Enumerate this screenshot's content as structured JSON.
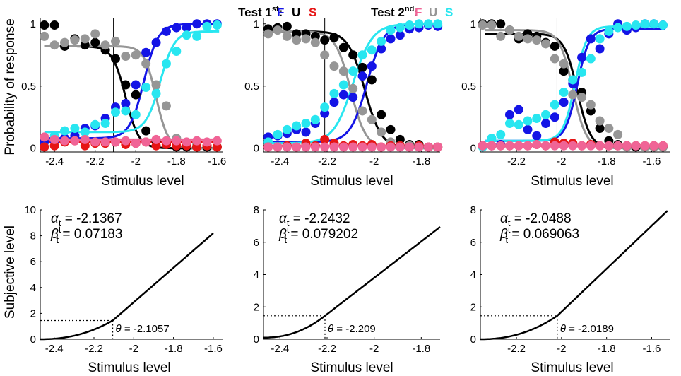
{
  "legend": {
    "test1_label": "Test 1",
    "test1_sup": "st",
    "test2_label": "Test 2",
    "test2_sup": "nd",
    "test1_items": [
      {
        "letter": "F",
        "color": "#1414e6"
      },
      {
        "letter": "U",
        "color": "#000000"
      },
      {
        "letter": "S",
        "color": "#e61414"
      }
    ],
    "test2_items": [
      {
        "letter": "F",
        "color": "#f06496"
      },
      {
        "letter": "U",
        "color": "#969696"
      },
      {
        "letter": "S",
        "color": "#28e6f0"
      }
    ]
  },
  "colors": {
    "blue": "#1414e6",
    "black": "#000000",
    "red": "#e61414",
    "pink": "#f06496",
    "gray": "#969696",
    "cyan": "#28e6f0"
  },
  "chart_data": [
    {
      "type": "scatter",
      "title": "",
      "xlabel": "Stimulus level",
      "ylabel": "Probability of response",
      "xlim": [
        -2.47,
        -1.57
      ],
      "ylim": [
        -0.03,
        1.05
      ],
      "xticks": [
        -2.4,
        -2.2,
        -2.0,
        -1.8,
        -1.6
      ],
      "xtick_labels": [
        "-2.4",
        "-2.2",
        "-2",
        "-1.8",
        "-1.6"
      ],
      "yticks": [
        0,
        0.5,
        1
      ],
      "ytick_labels": [
        "0",
        "0.5",
        "1"
      ],
      "vline_x": -2.11,
      "x": [
        -2.45,
        -2.4,
        -2.35,
        -2.3,
        -2.25,
        -2.2,
        -2.15,
        -2.1,
        -2.05,
        -2.0,
        -1.95,
        -1.9,
        -1.85,
        -1.8,
        -1.75,
        -1.7,
        -1.65,
        -1.6
      ],
      "curves": [
        {
          "color": "black",
          "mu": -2.05,
          "sigma": 0.055,
          "lapse_top": 0.82,
          "base": 0.0,
          "decreasing": true
        },
        {
          "color": "gray",
          "mu": -1.9,
          "sigma": 0.05,
          "lapse_top": 0.82,
          "base": 0.0,
          "decreasing": true
        },
        {
          "color": "blue",
          "mu": -1.96,
          "sigma": 0.06,
          "lapse_top": 1.0,
          "base": 0.08,
          "decreasing": false
        },
        {
          "color": "cyan",
          "mu": -1.88,
          "sigma": 0.06,
          "lapse_top": 0.94,
          "base": 0.13,
          "decreasing": false
        },
        {
          "color": "red",
          "flat": 0.05
        },
        {
          "color": "pink",
          "flat": 0.07
        }
      ],
      "series": [
        {
          "name": "Test 1st U",
          "color": "black",
          "values": [
            0.99,
            0.99,
            0.82,
            0.88,
            0.83,
            0.85,
            0.79,
            0.72,
            0.51,
            0.43,
            0.14,
            0.06,
            0.03,
            0.01,
            0.01,
            0.01,
            0.01,
            0.01
          ]
        },
        {
          "name": "Test 2nd U",
          "color": "gray",
          "values": [
            0.9,
            0.83,
            0.85,
            0.87,
            0.88,
            0.92,
            0.83,
            0.86,
            0.74,
            0.75,
            0.68,
            0.51,
            0.34,
            0.08,
            0.04,
            0.03,
            0.02,
            0.01
          ]
        },
        {
          "name": "Test 1st F",
          "color": "blue",
          "values": [
            0.05,
            0.06,
            0.08,
            0.1,
            0.16,
            0.18,
            0.24,
            0.33,
            0.36,
            0.51,
            0.77,
            0.85,
            0.94,
            0.97,
            0.97,
            1.0,
            1.0,
            1.0
          ]
        },
        {
          "name": "Test 2nd S",
          "color": "cyan",
          "values": [
            0.01,
            0.1,
            0.14,
            0.16,
            0.13,
            0.19,
            0.2,
            0.29,
            0.3,
            0.27,
            0.49,
            0.44,
            0.68,
            0.78,
            0.91,
            0.9,
            0.98,
            0.99
          ]
        },
        {
          "name": "Test 1st S",
          "color": "red",
          "values": [
            0.01,
            0.02,
            0.05,
            0.06,
            0.02,
            0.04,
            0.04,
            0.05,
            0.03,
            0.04,
            0.05,
            0.02,
            0.03,
            0.02,
            0.02,
            0.01,
            0.02,
            0.01
          ]
        },
        {
          "name": "Test 2nd F",
          "color": "pink",
          "values": [
            0.09,
            0.07,
            0.06,
            0.06,
            0.07,
            0.05,
            0.05,
            0.05,
            0.06,
            0.04,
            0.05,
            0.07,
            0.06,
            0.06,
            0.05,
            0.06,
            0.05,
            0.06
          ]
        }
      ]
    },
    {
      "type": "scatter",
      "title": "",
      "xlabel": "Stimulus level",
      "ylabel": "",
      "xlim": [
        -2.47,
        -1.72
      ],
      "ylim": [
        -0.03,
        1.05
      ],
      "xticks": [
        -2.4,
        -2.2,
        -2.0,
        -1.8
      ],
      "xtick_labels": [
        "-2.4",
        "-2.2",
        "-2",
        "-1.8"
      ],
      "yticks": [
        0,
        0.5,
        1
      ],
      "ytick_labels": [
        "0",
        "0.5",
        "1"
      ],
      "vline_x": -2.21,
      "x": [
        -2.45,
        -2.41,
        -2.37,
        -2.33,
        -2.29,
        -2.25,
        -2.21,
        -2.17,
        -2.13,
        -2.09,
        -2.05,
        -2.01,
        -1.97,
        -1.93,
        -1.89,
        -1.85,
        -1.81,
        -1.77,
        -1.73
      ],
      "curves": [
        {
          "color": "black",
          "mu": -2.04,
          "sigma": 0.06,
          "lapse_top": 0.94,
          "base": 0.0,
          "decreasing": true
        },
        {
          "color": "gray",
          "mu": -2.1,
          "sigma": 0.055,
          "lapse_top": 0.94,
          "base": 0.0,
          "decreasing": true
        },
        {
          "color": "blue",
          "mu": -2.03,
          "sigma": 0.06,
          "lapse_top": 1.0,
          "base": 0.05,
          "decreasing": false
        },
        {
          "color": "cyan",
          "mu": -2.09,
          "sigma": 0.07,
          "lapse_top": 1.0,
          "base": 0.04,
          "decreasing": false
        },
        {
          "color": "red",
          "flat": 0.02
        },
        {
          "color": "pink",
          "flat": 0.02
        }
      ],
      "series": [
        {
          "name": "Test 1st U",
          "color": "black",
          "values": [
            0.96,
            0.97,
            0.98,
            0.92,
            0.92,
            0.9,
            0.87,
            0.89,
            0.81,
            0.75,
            0.65,
            0.55,
            0.27,
            0.15,
            0.07,
            0.03,
            0.03,
            0.01,
            0.01
          ]
        },
        {
          "name": "Test 2nd U",
          "color": "gray",
          "values": [
            0.92,
            0.95,
            0.9,
            0.87,
            0.88,
            0.85,
            0.75,
            0.66,
            0.62,
            0.48,
            0.3,
            0.23,
            0.13,
            0.05,
            0.02,
            0.02,
            0.01,
            0.01,
            0.01
          ]
        },
        {
          "name": "Test 1st F",
          "color": "blue",
          "values": [
            0.09,
            0.1,
            0.12,
            0.15,
            0.13,
            0.2,
            0.28,
            0.37,
            0.43,
            0.41,
            0.58,
            0.66,
            0.8,
            0.88,
            0.91,
            0.96,
            0.97,
            0.99,
            0.98
          ]
        },
        {
          "name": "Test 2nd S",
          "color": "cyan",
          "values": [
            0.05,
            0.11,
            0.15,
            0.18,
            0.2,
            0.23,
            0.33,
            0.44,
            0.51,
            0.62,
            0.75,
            0.79,
            0.86,
            0.95,
            0.97,
            0.99,
            1.0,
            1.0,
            1.0
          ]
        },
        {
          "name": "Test 1st S",
          "color": "red",
          "values": [
            0.01,
            0.01,
            0.02,
            0.01,
            0.04,
            0.02,
            0.07,
            0.04,
            0.02,
            0.03,
            0.02,
            0.03,
            0.01,
            0.02,
            0.02,
            0.01,
            0.02,
            0.01,
            0.01
          ]
        },
        {
          "name": "Test 2nd F",
          "color": "pink",
          "values": [
            0.01,
            0.01,
            0.01,
            0.01,
            0.01,
            0.01,
            0.01,
            0.01,
            0.01,
            0.01,
            0.01,
            0.01,
            0.01,
            0.01,
            0.01,
            0.01,
            0.01,
            0.01,
            0.01
          ]
        }
      ]
    },
    {
      "type": "scatter",
      "title": "",
      "xlabel": "Stimulus level",
      "ylabel": "",
      "xlim": [
        -2.36,
        -1.52
      ],
      "ylim": [
        -0.03,
        1.05
      ],
      "xticks": [
        -2.2,
        -2.0,
        -1.8,
        -1.6
      ],
      "xtick_labels": [
        "-2.2",
        "-2",
        "-1.8",
        "-1.6"
      ],
      "yticks": [
        0,
        0.5,
        1
      ],
      "ytick_labels": [
        "0",
        "0.5",
        "1"
      ],
      "vline_x": -2.02,
      "x": [
        -2.35,
        -2.31,
        -2.27,
        -2.23,
        -2.19,
        -2.15,
        -2.11,
        -2.07,
        -2.03,
        -1.99,
        -1.95,
        -1.91,
        -1.87,
        -1.83,
        -1.79,
        -1.75,
        -1.71,
        -1.67,
        -1.63,
        -1.59,
        -1.55
      ],
      "curves": [
        {
          "color": "black",
          "mu": -1.93,
          "sigma": 0.05,
          "lapse_top": 0.92,
          "base": 0.0,
          "decreasing": true
        },
        {
          "color": "gray",
          "mu": -1.95,
          "sigma": 0.05,
          "lapse_top": 0.95,
          "base": 0.0,
          "decreasing": true
        },
        {
          "color": "blue",
          "mu": -1.93,
          "sigma": 0.045,
          "lapse_top": 0.96,
          "base": 0.06,
          "decreasing": false
        },
        {
          "color": "cyan",
          "mu": -1.94,
          "sigma": 0.045,
          "lapse_top": 0.98,
          "base": 0.06,
          "decreasing": false
        },
        {
          "color": "red",
          "flat": 0.02
        },
        {
          "color": "pink",
          "flat": 0.02
        }
      ],
      "series": [
        {
          "name": "Test 1st U",
          "color": "black",
          "values": [
            1.0,
            1.0,
            1.0,
            0.95,
            0.88,
            0.92,
            0.9,
            0.85,
            0.82,
            0.62,
            0.55,
            0.45,
            0.3,
            0.16,
            0.06,
            0.03,
            0.02,
            0.01,
            0.01,
            0.01,
            0.01
          ]
        },
        {
          "name": "Test 2nd U",
          "color": "gray",
          "values": [
            0.99,
            0.99,
            0.9,
            0.95,
            0.9,
            0.88,
            0.87,
            0.84,
            0.72,
            0.68,
            0.43,
            0.41,
            0.35,
            0.22,
            0.16,
            0.11,
            0.01,
            0.02,
            0.01,
            0.01,
            0.01
          ]
        },
        {
          "name": "Test 1st F",
          "color": "blue",
          "values": [
            0.02,
            0.02,
            0.03,
            0.27,
            0.31,
            0.15,
            0.1,
            0.2,
            0.25,
            0.37,
            0.52,
            0.73,
            0.88,
            0.8,
            0.92,
            1.0,
            0.95,
            0.97,
            1.0,
            1.0,
            0.99
          ]
        },
        {
          "name": "Test 2nd S",
          "color": "cyan",
          "values": [
            0.01,
            0.08,
            0.11,
            0.2,
            0.19,
            0.22,
            0.24,
            0.27,
            0.35,
            0.45,
            0.55,
            0.61,
            0.72,
            0.88,
            0.94,
            0.97,
            0.98,
            0.99,
            1.0,
            1.0,
            0.99
          ]
        },
        {
          "name": "Test 1st S",
          "color": "red",
          "values": [
            0.02,
            0.02,
            0.02,
            0.02,
            0.02,
            0.02,
            0.03,
            0.02,
            0.05,
            0.04,
            0.04,
            0.02,
            0.03,
            0.02,
            0.02,
            0.02,
            0.02,
            0.02,
            0.02,
            0.02,
            0.02
          ]
        },
        {
          "name": "Test 2nd F",
          "color": "pink",
          "values": [
            0.02,
            0.02,
            0.02,
            0.02,
            0.02,
            0.02,
            0.03,
            0.02,
            0.02,
            0.02,
            0.02,
            0.02,
            0.02,
            0.02,
            0.02,
            0.02,
            0.02,
            0.02,
            0.02,
            0.02,
            0.02
          ]
        }
      ]
    },
    {
      "type": "line",
      "title": "",
      "xlabel": "Stimulus level",
      "ylabel": "Subjective level",
      "xlim": [
        -2.47,
        -1.55
      ],
      "ylim": [
        0,
        10
      ],
      "xticks": [
        -2.4,
        -2.2,
        -2.0,
        -1.8,
        -1.6
      ],
      "xtick_labels": [
        "-2.4",
        "-2.2",
        "-2",
        "-1.8",
        "-1.6"
      ],
      "yticks": [
        0,
        2,
        4,
        6,
        8,
        10
      ],
      "ytick_labels": [
        "0",
        "2",
        "4",
        "6",
        "8",
        "10"
      ],
      "alpha_label": "α",
      "alpha_sub": "t",
      "alpha_text": " = -2.1367",
      "beta_label": "β",
      "beta_sup": "t",
      "beta_sub": "t",
      "beta_text": " = 0.07183",
      "theta_label": "θ",
      "theta_text": " = -2.1057",
      "theta_x": -2.1057,
      "line": {
        "x_end": -1.6,
        "y_end": 8.2,
        "y_theta": 1.45,
        "x_start": -2.47,
        "y_start": 0.0
      }
    },
    {
      "type": "line",
      "title": "",
      "xlabel": "Stimulus level",
      "ylabel": "",
      "xlim": [
        -2.47,
        -1.72
      ],
      "ylim": [
        0,
        8
      ],
      "xticks": [
        -2.4,
        -2.2,
        -2.0,
        -1.8
      ],
      "xtick_labels": [
        "-2.4",
        "-2.2",
        "-2",
        "-1.8"
      ],
      "yticks": [
        0,
        2,
        4,
        6,
        8
      ],
      "ytick_labels": [
        "0",
        "2",
        "4",
        "6",
        "8"
      ],
      "alpha_label": "α",
      "alpha_sub": "t",
      "alpha_text": " = -2.2432",
      "beta_label": "β",
      "beta_sup": "t",
      "beta_sub": "t",
      "beta_text": " = 0.079202",
      "theta_label": "θ",
      "theta_text": " = -2.209",
      "theta_x": -2.209,
      "line": {
        "x_end": -1.72,
        "y_end": 6.95,
        "y_theta": 1.45,
        "x_start": -2.47,
        "y_start": 0.1
      }
    },
    {
      "type": "line",
      "title": "",
      "xlabel": "Stimulus level",
      "ylabel": "",
      "xlim": [
        -2.36,
        -1.52
      ],
      "ylim": [
        0,
        8
      ],
      "xticks": [
        -2.2,
        -2.0,
        -1.8,
        -1.6
      ],
      "xtick_labels": [
        "-2.2",
        "-2",
        "-1.8",
        "-1.6"
      ],
      "yticks": [
        0,
        2,
        4,
        6,
        8
      ],
      "ytick_labels": [
        "0",
        "2",
        "4",
        "6",
        "8"
      ],
      "alpha_label": "α",
      "alpha_sub": "t",
      "alpha_text": " = -2.0488",
      "beta_label": "β",
      "beta_sup": "t",
      "beta_sub": "t",
      "beta_text": " = 0.069063",
      "theta_label": "θ",
      "theta_text": " = -2.0189",
      "theta_x": -2.0189,
      "line": {
        "x_end": -1.53,
        "y_end": 7.95,
        "y_theta": 1.45,
        "x_start": -2.36,
        "y_start": 0.0
      }
    }
  ]
}
